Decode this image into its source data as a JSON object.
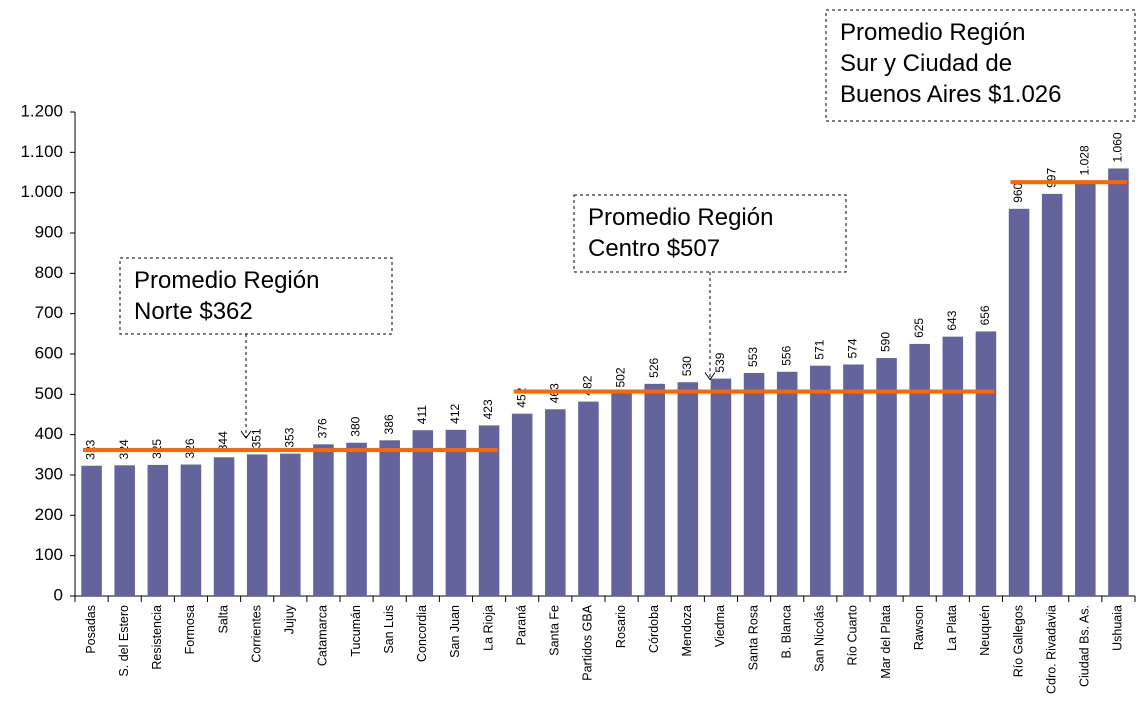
{
  "chart_data": {
    "type": "bar",
    "categories": [
      "Posadas",
      "S. del Estero",
      "Resistencia",
      "Formosa",
      "Salta",
      "Corrientes",
      "Jujuy",
      "Catamarca",
      "Tucumán",
      "San Luis",
      "Concordia",
      "San Juan",
      "La Rioja",
      "Paraná",
      "Santa Fe",
      "Partidos GBA",
      "Rosario",
      "Córdoba",
      "Mendoza",
      "Viedma",
      "Santa Rosa",
      "B. Blanca",
      "San Nicolás",
      "Río Cuarto",
      "Mar del Plata",
      "Rawson",
      "La Plata",
      "Neuquén",
      "Río Gallegos",
      "Cdro. Rivadavia",
      "Ciudad Bs. As.",
      "Ushuaia"
    ],
    "values": [
      323,
      324,
      325,
      326,
      344,
      351,
      353,
      376,
      380,
      386,
      411,
      412,
      423,
      452,
      463,
      482,
      502,
      526,
      530,
      539,
      553,
      556,
      571,
      574,
      590,
      625,
      643,
      656,
      960,
      997,
      1028,
      1060
    ],
    "value_labels": [
      "323",
      "324",
      "325",
      "326",
      "344",
      "351",
      "353",
      "376",
      "380",
      "386",
      "411",
      "412",
      "423",
      "452",
      "463",
      "482",
      "502",
      "526",
      "530",
      "539",
      "553",
      "556",
      "571",
      "574",
      "590",
      "625",
      "643",
      "656",
      "960",
      "997",
      "1.028",
      "1.060"
    ],
    "color": "#64649c",
    "ylim": [
      0,
      1200
    ],
    "yticks": [
      0,
      100,
      200,
      300,
      400,
      500,
      600,
      700,
      800,
      900,
      {
        "value": 1000,
        "label": "1.000"
      },
      {
        "value": 1100,
        "label": "1.100"
      },
      {
        "value": 1200,
        "label": "1.200"
      }
    ],
    "averages": [
      {
        "label_lines": [
          "Promedio Región",
          "Norte $362"
        ],
        "value": 362,
        "start": "Posadas",
        "end": "La Rioja",
        "color": "#ff6600"
      },
      {
        "label_lines": [
          "Promedio Región",
          "Centro $507"
        ],
        "value": 507,
        "start": "Paraná",
        "end": "Neuquén",
        "color": "#ff6600"
      },
      {
        "label_lines": [
          "Promedio Región",
          "Sur y Ciudad de",
          "Buenos Aires $1.026"
        ],
        "value": 1026,
        "start": "Río Gallegos",
        "end": "Ushuaia",
        "color": "#ff6600"
      }
    ]
  }
}
